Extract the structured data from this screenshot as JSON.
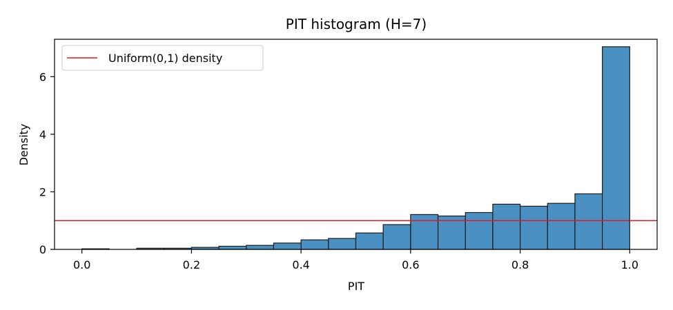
{
  "chart_data": {
    "type": "bar",
    "title": "PIT histogram (H=7)",
    "xlabel": "PIT",
    "ylabel": "Density",
    "xlim": [
      -0.05,
      1.05
    ],
    "ylim": [
      0,
      7.3
    ],
    "bin_width": 0.05,
    "bins": [
      {
        "x0": 0.0,
        "x1": 0.05,
        "density": 0.02
      },
      {
        "x0": 0.05,
        "x1": 0.1,
        "density": 0.0
      },
      {
        "x0": 0.1,
        "x1": 0.15,
        "density": 0.04
      },
      {
        "x0": 0.15,
        "x1": 0.2,
        "density": 0.04
      },
      {
        "x0": 0.2,
        "x1": 0.25,
        "density": 0.07
      },
      {
        "x0": 0.25,
        "x1": 0.3,
        "density": 0.11
      },
      {
        "x0": 0.3,
        "x1": 0.35,
        "density": 0.14
      },
      {
        "x0": 0.35,
        "x1": 0.4,
        "density": 0.22
      },
      {
        "x0": 0.4,
        "x1": 0.45,
        "density": 0.33
      },
      {
        "x0": 0.45,
        "x1": 0.5,
        "density": 0.38
      },
      {
        "x0": 0.5,
        "x1": 0.55,
        "density": 0.57
      },
      {
        "x0": 0.55,
        "x1": 0.6,
        "density": 0.86
      },
      {
        "x0": 0.6,
        "x1": 0.65,
        "density": 1.21
      },
      {
        "x0": 0.65,
        "x1": 0.7,
        "density": 1.16
      },
      {
        "x0": 0.7,
        "x1": 0.75,
        "density": 1.28
      },
      {
        "x0": 0.75,
        "x1": 0.8,
        "density": 1.57
      },
      {
        "x0": 0.8,
        "x1": 0.85,
        "density": 1.5
      },
      {
        "x0": 0.85,
        "x1": 0.9,
        "density": 1.6
      },
      {
        "x0": 0.9,
        "x1": 0.95,
        "density": 1.93
      },
      {
        "x0": 0.95,
        "x1": 1.0,
        "density": 7.04
      }
    ],
    "reference_line": {
      "name": "Uniform(0,1) density",
      "y": 1.0,
      "color": "#e41a1c"
    },
    "xticks": [
      0.0,
      0.2,
      0.4,
      0.6,
      0.8,
      1.0
    ],
    "xtick_labels": [
      "0.0",
      "0.2",
      "0.4",
      "0.6",
      "0.8",
      "1.0"
    ],
    "yticks": [
      0,
      2,
      4,
      6
    ],
    "ytick_labels": [
      "0",
      "2",
      "4",
      "6"
    ],
    "bar_color": "#4a90c2",
    "bar_edge_color": "#1a1a1a",
    "legend_position": "top-left",
    "grid": false
  }
}
